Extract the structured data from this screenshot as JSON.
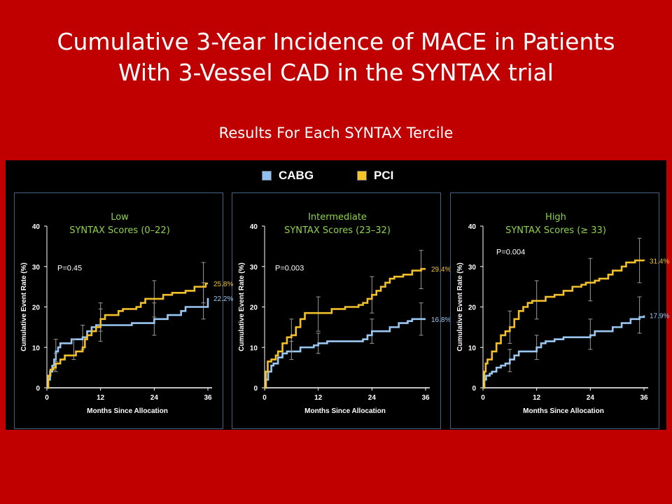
{
  "slide": {
    "title_line1": "Cumulative 3-Year Incidence of MACE in Patients",
    "title_line2": "With 3-Vessel CAD in the SYNTAX trial",
    "subtitle": "Results For Each SYNTAX Tercile"
  },
  "legend": [
    {
      "label": "CABG",
      "color": "#8fc0ef"
    },
    {
      "label": "PCI",
      "color": "#f5c527"
    }
  ],
  "colors": {
    "cabg": "#9ac8f3",
    "pci": "#f2c02a",
    "panel_title": "#8ed24b",
    "background": "#c00000",
    "figure_bg": "#000000"
  },
  "chart_data": [
    {
      "type": "line",
      "title_line1": "Low",
      "title_line2": "SYNTAX Scores (0–22)",
      "p_value": "P=0.45",
      "xlabel": "Months Since Allocation",
      "ylabel": "Cumulative Event Rate (%)",
      "xlim": [
        0,
        36
      ],
      "ylim": [
        0,
        40
      ],
      "xticks": [
        "0",
        "12",
        "24",
        "36"
      ],
      "yticks": [
        "0",
        "10",
        "20",
        "30",
        "40"
      ],
      "series": [
        {
          "name": "CABG",
          "end_label": "22.2%",
          "points": [
            [
              0,
              0
            ],
            [
              0.3,
              2
            ],
            [
              0.7,
              4
            ],
            [
              1.2,
              5.5
            ],
            [
              1.6,
              7
            ],
            [
              2,
              9
            ],
            [
              2.5,
              10
            ],
            [
              3,
              11
            ],
            [
              4,
              11
            ],
            [
              5,
              11
            ],
            [
              5.5,
              12
            ],
            [
              7,
              12
            ],
            [
              8,
              12.5
            ],
            [
              9,
              14
            ],
            [
              10,
              15
            ],
            [
              11,
              15.5
            ],
            [
              18,
              15.5
            ],
            [
              19,
              16
            ],
            [
              23,
              16
            ],
            [
              24,
              17
            ],
            [
              26,
              17
            ],
            [
              27,
              18
            ],
            [
              30,
              19
            ],
            [
              31,
              20
            ],
            [
              36,
              20
            ],
            [
              36,
              22.2
            ]
          ],
          "error_bars": [
            [
              2,
              9,
              6.5,
              12
            ],
            [
              8,
              12.5,
              9.5,
              15.5
            ],
            [
              12,
              15.5,
              11.5,
              19.5
            ],
            [
              24,
              17,
              13,
              21
            ],
            [
              35,
              21,
              17,
              26
            ]
          ]
        },
        {
          "name": "PCI",
          "end_label": "25.8%",
          "points": [
            [
              0,
              0
            ],
            [
              0.3,
              3
            ],
            [
              0.8,
              4.5
            ],
            [
              1.5,
              5
            ],
            [
              2,
              6
            ],
            [
              3,
              7
            ],
            [
              4,
              8
            ],
            [
              6,
              8
            ],
            [
              6.5,
              9
            ],
            [
              8,
              10
            ],
            [
              8.5,
              12
            ],
            [
              9,
              13
            ],
            [
              10,
              14
            ],
            [
              11,
              15
            ],
            [
              12,
              17
            ],
            [
              13,
              18
            ],
            [
              16,
              19
            ],
            [
              17,
              19.5
            ],
            [
              20,
              20
            ],
            [
              21,
              21
            ],
            [
              22,
              22
            ],
            [
              25,
              22
            ],
            [
              26,
              23
            ],
            [
              28,
              23.5
            ],
            [
              31,
              24
            ],
            [
              33,
              25
            ],
            [
              35,
              25
            ],
            [
              35.5,
              25.8
            ],
            [
              36,
              25.8
            ]
          ],
          "error_bars": [
            [
              2,
              6,
              4,
              8.5
            ],
            [
              6,
              9,
              7,
              12
            ],
            [
              12,
              17,
              14,
              21
            ],
            [
              24,
              22,
              17.5,
              26.5
            ],
            [
              35,
              26,
              21,
              31
            ]
          ]
        }
      ]
    },
    {
      "type": "line",
      "title_line1": "Intermediate",
      "title_line2": "SYNTAX Scores (23–32)",
      "p_value": "P=0.003",
      "xlabel": "Months Since Allocation",
      "ylabel": "Cumulative Event Rate (%)",
      "xlim": [
        0,
        36
      ],
      "ylim": [
        0,
        40
      ],
      "xticks": [
        "0",
        "12",
        "24",
        "36"
      ],
      "yticks": [
        "0",
        "10",
        "20",
        "30",
        "40"
      ],
      "series": [
        {
          "name": "CABG",
          "end_label": "16.8%",
          "points": [
            [
              0,
              0
            ],
            [
              0.3,
              2
            ],
            [
              0.8,
              4
            ],
            [
              1.5,
              5.5
            ],
            [
              2,
              6
            ],
            [
              3,
              7.5
            ],
            [
              4,
              8.5
            ],
            [
              5,
              9
            ],
            [
              7,
              9
            ],
            [
              8,
              10
            ],
            [
              11,
              10.5
            ],
            [
              12,
              11
            ],
            [
              14,
              11.5
            ],
            [
              20,
              11.5
            ],
            [
              22,
              12
            ],
            [
              23,
              13
            ],
            [
              24,
              14
            ],
            [
              27,
              14
            ],
            [
              28,
              15
            ],
            [
              30,
              16
            ],
            [
              32,
              16.5
            ],
            [
              33,
              17
            ],
            [
              36,
              17
            ]
          ],
          "error_bars": [
            [
              6,
              9,
              7,
              11.5
            ],
            [
              12,
              11,
              8.5,
              13.5
            ],
            [
              24,
              14,
              11,
              17
            ],
            [
              35,
              17,
              13,
              21
            ]
          ]
        },
        {
          "name": "PCI",
          "end_label": "29.4%",
          "points": [
            [
              0,
              0
            ],
            [
              0.3,
              4
            ],
            [
              0.7,
              6.5
            ],
            [
              1.5,
              7
            ],
            [
              2.5,
              8
            ],
            [
              3,
              9
            ],
            [
              4,
              11
            ],
            [
              5,
              12.5
            ],
            [
              6,
              13
            ],
            [
              7,
              15
            ],
            [
              8,
              17
            ],
            [
              9,
              18.5
            ],
            [
              14,
              18.5
            ],
            [
              15,
              19.5
            ],
            [
              18,
              20
            ],
            [
              21,
              20.5
            ],
            [
              22,
              21
            ],
            [
              23,
              22
            ],
            [
              24,
              23
            ],
            [
              25,
              24
            ],
            [
              26,
              25
            ],
            [
              27,
              26
            ],
            [
              28,
              27
            ],
            [
              29,
              27.5
            ],
            [
              31,
              28
            ],
            [
              33,
              29
            ],
            [
              35,
              29.4
            ],
            [
              36,
              29.4
            ]
          ],
          "error_bars": [
            [
              6,
              13,
              9,
              17
            ],
            [
              12,
              18.5,
              14,
              22.5
            ],
            [
              24,
              23,
              18.5,
              27.5
            ],
            [
              35,
              29,
              24.5,
              34
            ]
          ]
        }
      ]
    },
    {
      "type": "line",
      "title_line1": "High",
      "title_line2": "SYNTAX Scores (≥ 33)",
      "p_value": "P=0.004",
      "xlabel": "Months Since Allocation",
      "ylabel": "Cumulative Event Rate (%)",
      "xlim": [
        0,
        36
      ],
      "ylim": [
        0,
        40
      ],
      "xticks": [
        "0",
        "12",
        "24",
        "36"
      ],
      "yticks": [
        "0",
        "10",
        "20",
        "30",
        "40"
      ],
      "series": [
        {
          "name": "CABG",
          "end_label": "17.9%",
          "points": [
            [
              0,
              0
            ],
            [
              0.3,
              2
            ],
            [
              0.7,
              3
            ],
            [
              1.5,
              3.5
            ],
            [
              2,
              4
            ],
            [
              3,
              5
            ],
            [
              4,
              5.5
            ],
            [
              5,
              6
            ],
            [
              6,
              7
            ],
            [
              7,
              8
            ],
            [
              8,
              9
            ],
            [
              11,
              9
            ],
            [
              12,
              10
            ],
            [
              13,
              11
            ],
            [
              14,
              11.5
            ],
            [
              16,
              12
            ],
            [
              18,
              12.5
            ],
            [
              23,
              12.5
            ],
            [
              24,
              13
            ],
            [
              25,
              14
            ],
            [
              28,
              14
            ],
            [
              29,
              15
            ],
            [
              31,
              16
            ],
            [
              33,
              17
            ],
            [
              35,
              17.5
            ],
            [
              36,
              17.9
            ]
          ],
          "error_bars": [
            [
              6,
              7,
              4,
              9.5
            ],
            [
              12,
              10,
              7,
              13
            ],
            [
              24,
              13,
              9.5,
              17
            ],
            [
              35,
              18,
              13.5,
              22.5
            ]
          ]
        },
        {
          "name": "PCI",
          "end_label": "31.4%",
          "points": [
            [
              0,
              0
            ],
            [
              0.3,
              4
            ],
            [
              0.6,
              6
            ],
            [
              1,
              7
            ],
            [
              2,
              9
            ],
            [
              3,
              11
            ],
            [
              4,
              13
            ],
            [
              5,
              14
            ],
            [
              6,
              15
            ],
            [
              7,
              17
            ],
            [
              8,
              19
            ],
            [
              9,
              20
            ],
            [
              10,
              21
            ],
            [
              11,
              21.5
            ],
            [
              13,
              21.5
            ],
            [
              14,
              22.5
            ],
            [
              16,
              23
            ],
            [
              18,
              24
            ],
            [
              20,
              25
            ],
            [
              22,
              25.5
            ],
            [
              23,
              26
            ],
            [
              25,
              26.5
            ],
            [
              26,
              27
            ],
            [
              28,
              28
            ],
            [
              29,
              29
            ],
            [
              31,
              30
            ],
            [
              32,
              31
            ],
            [
              34,
              31.5
            ],
            [
              36,
              31.4
            ]
          ],
          "error_bars": [
            [
              6,
              15,
              11,
              19
            ],
            [
              12,
              21.5,
              17,
              26.5
            ],
            [
              24,
              26.5,
              21.5,
              32
            ],
            [
              35,
              31.5,
              26,
              37
            ]
          ]
        }
      ]
    }
  ]
}
